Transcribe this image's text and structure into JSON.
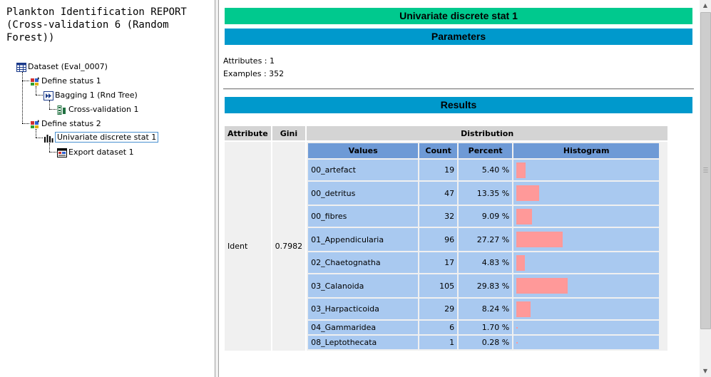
{
  "report_title": "Plankton Identification REPORT (Cross-validation 6 (Random Forest))",
  "tree": [
    {
      "label": "Dataset (Eval_0007)",
      "icon": "table-icon"
    },
    {
      "label": "Define status 1",
      "icon": "define-status-icon"
    },
    {
      "label": "Bagging 1 (Rnd Tree)",
      "icon": "bagging-icon"
    },
    {
      "label": "Cross-validation 1",
      "icon": "cross-validation-icon"
    },
    {
      "label": "Define status 2",
      "icon": "define-status-icon"
    },
    {
      "label": "Univariate discrete stat 1",
      "icon": "bar-chart-icon",
      "selected": true
    },
    {
      "label": "Export dataset 1",
      "icon": "export-icon"
    }
  ],
  "main": {
    "title": "Univariate discrete stat 1",
    "parameters_heading": "Parameters",
    "attributes_line": "Attributes : 1",
    "examples_line": "Examples : 352",
    "results_heading": "Results"
  },
  "results_table": {
    "headers": {
      "attribute": "Attribute",
      "gini": "Gini",
      "distribution": "Distribution"
    },
    "attribute": "Ident",
    "gini": "0.7982",
    "dist_headers": {
      "values": "Values",
      "count": "Count",
      "percent": "Percent",
      "histogram": "Histogram"
    },
    "rows": [
      {
        "value": "00_artefact",
        "count": "19",
        "percent": "5.40 %",
        "fraction": 0.054
      },
      {
        "value": "00_detritus",
        "count": "47",
        "percent": "13.35 %",
        "fraction": 0.1335
      },
      {
        "value": "00_fibres",
        "count": "32",
        "percent": "9.09 %",
        "fraction": 0.0909
      },
      {
        "value": "01_Appendicularia",
        "count": "96",
        "percent": "27.27 %",
        "fraction": 0.2727
      },
      {
        "value": "02_Chaetognatha",
        "count": "17",
        "percent": "4.83 %",
        "fraction": 0.0483
      },
      {
        "value": "03_Calanoida",
        "count": "105",
        "percent": "29.83 %",
        "fraction": 0.2983
      },
      {
        "value": "03_Harpacticoida",
        "count": "29",
        "percent": "8.24 %",
        "fraction": 0.0824
      },
      {
        "value": "04_Gammaridea",
        "count": "6",
        "percent": "1.70 %",
        "fraction": 0.017
      },
      {
        "value": "08_Leptothecata",
        "count": "1",
        "percent": "0.28 %",
        "fraction": 0.0028
      }
    ]
  },
  "colors": {
    "title_banner": "#00c98e",
    "section_banner": "#0099cc",
    "histogram_bar": "#ff9999",
    "inner_header": "#6e9ad6",
    "inner_cell": "#a9c9f0"
  }
}
